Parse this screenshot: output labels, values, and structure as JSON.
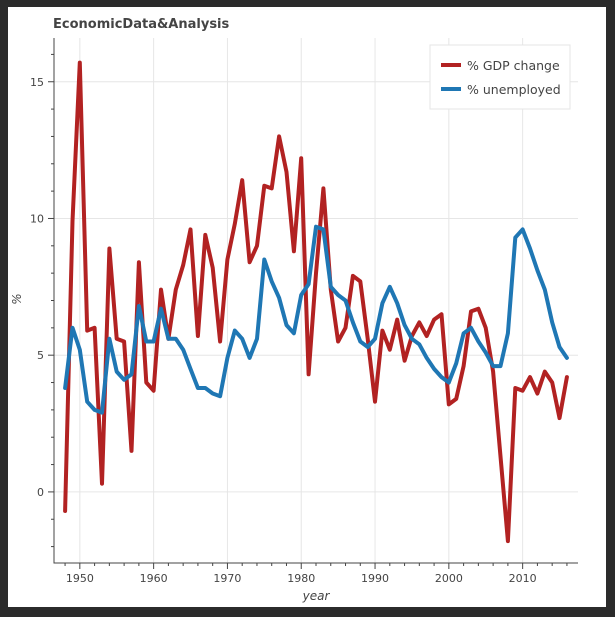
{
  "chart_data": {
    "type": "line",
    "title": "EconomicData&Analysis",
    "xlabel": "year",
    "ylabel": "%",
    "xlim": [
      1946.5,
      2017.5
    ],
    "ylim": [
      -2.6,
      16.6
    ],
    "xticks": [
      1950,
      1960,
      1970,
      1980,
      1990,
      2000,
      2010
    ],
    "yticks": [
      0,
      5,
      10,
      15
    ],
    "grid": true,
    "legend_position": "top-right",
    "x": [
      1948,
      1949,
      1950,
      1951,
      1952,
      1953,
      1954,
      1955,
      1956,
      1957,
      1958,
      1959,
      1960,
      1961,
      1962,
      1963,
      1964,
      1965,
      1966,
      1967,
      1968,
      1969,
      1970,
      1971,
      1972,
      1973,
      1974,
      1975,
      1976,
      1977,
      1978,
      1979,
      1980,
      1981,
      1982,
      1983,
      1984,
      1985,
      1986,
      1987,
      1988,
      1989,
      1990,
      1991,
      1992,
      1993,
      1994,
      1995,
      1996,
      1997,
      1998,
      1999,
      2000,
      2001,
      2002,
      2003,
      2004,
      2005,
      2006,
      2007,
      2008,
      2009,
      2010,
      2011,
      2012,
      2013,
      2014,
      2015,
      2016
    ],
    "series": [
      {
        "name": "% GDP change",
        "color": "#b22222",
        "values": [
          -0.7,
          9.9,
          15.7,
          5.9,
          6.0,
          0.3,
          8.9,
          5.6,
          5.5,
          1.5,
          8.4,
          4.0,
          3.7,
          7.4,
          5.6,
          7.4,
          8.3,
          9.6,
          5.7,
          9.4,
          8.2,
          5.5,
          8.5,
          9.8,
          11.4,
          8.4,
          9.0,
          11.2,
          11.1,
          13.0,
          11.7,
          8.8,
          12.2,
          4.3,
          8.0,
          11.1,
          7.4,
          5.5,
          6.0,
          7.9,
          7.7,
          5.6,
          3.3,
          5.9,
          5.2,
          6.3,
          4.8,
          5.7,
          6.2,
          5.7,
          6.3,
          6.5,
          3.2,
          3.4,
          4.6,
          6.6,
          6.7,
          6.0,
          4.4,
          1.3,
          -1.8,
          3.8,
          3.7,
          4.2,
          3.6,
          4.4,
          4.0,
          2.7,
          4.2
        ]
      },
      {
        "name": "% unemployed",
        "color": "#1f77b4",
        "values": [
          3.8,
          6.0,
          5.2,
          3.3,
          3.0,
          2.9,
          5.6,
          4.4,
          4.1,
          4.3,
          6.8,
          5.5,
          5.5,
          6.7,
          5.6,
          5.6,
          5.2,
          4.5,
          3.8,
          3.8,
          3.6,
          3.5,
          4.9,
          5.9,
          5.6,
          4.9,
          5.6,
          8.5,
          7.7,
          7.1,
          6.1,
          5.8,
          7.2,
          7.6,
          9.7,
          9.6,
          7.5,
          7.2,
          7.0,
          6.2,
          5.5,
          5.3,
          5.6,
          6.9,
          7.5,
          6.9,
          6.1,
          5.6,
          5.4,
          4.9,
          4.5,
          4.2,
          4.0,
          4.7,
          5.8,
          6.0,
          5.5,
          5.1,
          4.6,
          4.6,
          5.8,
          9.3,
          9.6,
          8.9,
          8.1,
          7.4,
          6.2,
          5.3,
          4.9
        ]
      }
    ]
  }
}
